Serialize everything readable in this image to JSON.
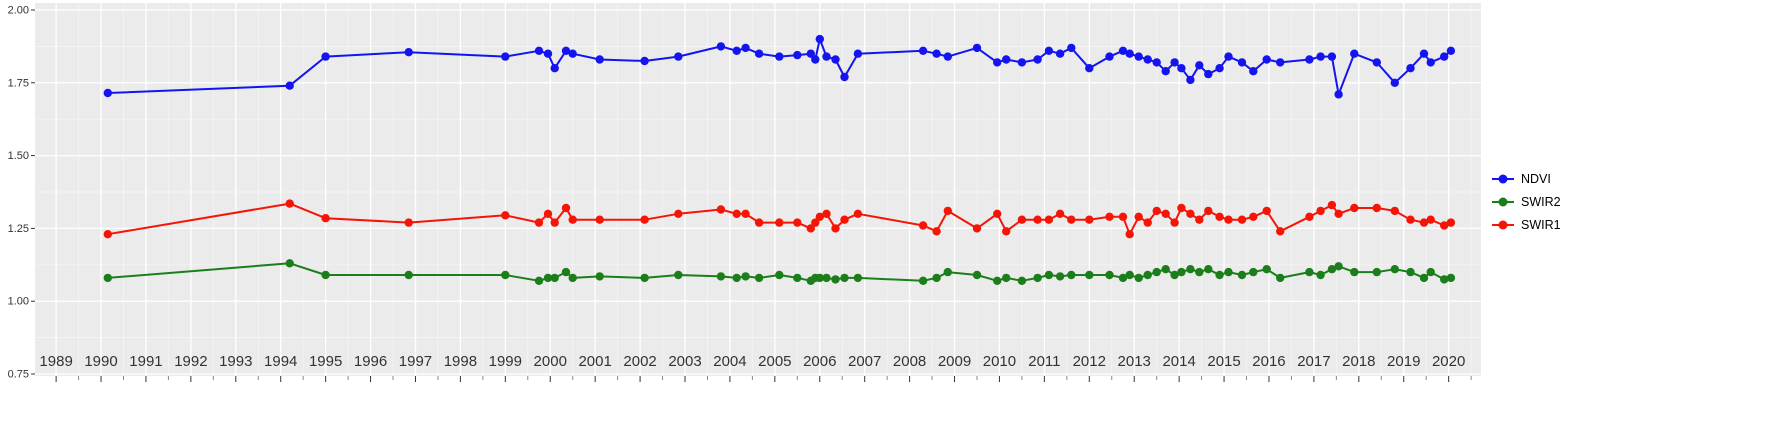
{
  "chart_data": {
    "type": "line",
    "title": "",
    "xlabel": "",
    "ylabel": "",
    "xlim": [
      1988.53,
      2020.72
    ],
    "ylim": [
      0.75,
      2.0
    ],
    "grid": true,
    "panel_bg": "#EBEBEB",
    "grid_major_color": "#FFFFFF",
    "grid_minor_color": "#FFFFFF",
    "axis_text_color": "#333333",
    "legend_position": "right",
    "x_ticks": [
      "1989",
      "1990",
      "1991",
      "1992",
      "1993",
      "1994",
      "1995",
      "1996",
      "1997",
      "1998",
      "1999",
      "2000",
      "2001",
      "2002",
      "2003",
      "2004",
      "2005",
      "2006",
      "2007",
      "2008",
      "2009",
      "2010",
      "2011",
      "2012",
      "2013",
      "2014",
      "2015",
      "2016",
      "2017",
      "2018",
      "2019",
      "2020"
    ],
    "x_tick_values": [
      1989,
      1990,
      1991,
      1992,
      1993,
      1994,
      1995,
      1996,
      1997,
      1998,
      1999,
      2000,
      2001,
      2002,
      2003,
      2004,
      2005,
      2006,
      2007,
      2008,
      2009,
      2010,
      2011,
      2012,
      2013,
      2014,
      2015,
      2016,
      2017,
      2018,
      2019,
      2020
    ],
    "y_ticks": [
      "2.00",
      "1.75",
      "1.50",
      "1.25",
      "1.00",
      "0.75"
    ],
    "y_tick_values": [
      2.0,
      1.75,
      1.5,
      1.25,
      1.0,
      0.75
    ],
    "x": [
      1990.15,
      1994.2,
      1995.0,
      1996.85,
      1999.0,
      1999.75,
      1999.95,
      2000.1,
      2000.35,
      2000.5,
      2001.1,
      2002.1,
      2002.85,
      2003.8,
      2004.15,
      2004.35,
      2004.65,
      2005.1,
      2005.5,
      2005.8,
      2005.9,
      2006.0,
      2006.15,
      2006.35,
      2006.55,
      2006.85,
      2008.3,
      2008.6,
      2008.85,
      2009.5,
      2009.95,
      2010.15,
      2010.5,
      2010.85,
      2011.1,
      2011.35,
      2011.6,
      2012.0,
      2012.45,
      2012.75,
      2012.9,
      2013.1,
      2013.3,
      2013.5,
      2013.7,
      2013.9,
      2014.05,
      2014.25,
      2014.45,
      2014.65,
      2014.9,
      2015.1,
      2015.4,
      2015.65,
      2015.95,
      2016.25,
      2016.9,
      2017.15,
      2017.4,
      2017.55,
      2017.9,
      2018.4,
      2018.8,
      2019.15,
      2019.45,
      2019.6,
      2019.9,
      2020.05
    ],
    "series": [
      {
        "name": "NDVI",
        "color": "#1414F0",
        "values": [
          1.715,
          1.74,
          1.84,
          1.855,
          1.84,
          1.86,
          1.85,
          1.8,
          1.86,
          1.85,
          1.83,
          1.825,
          1.84,
          1.875,
          1.86,
          1.87,
          1.85,
          1.84,
          1.845,
          1.85,
          1.83,
          1.9,
          1.84,
          1.83,
          1.77,
          1.85,
          1.86,
          1.85,
          1.84,
          1.87,
          1.82,
          1.83,
          1.82,
          1.83,
          1.86,
          1.85,
          1.87,
          1.8,
          1.84,
          1.86,
          1.85,
          1.84,
          1.83,
          1.82,
          1.79,
          1.82,
          1.8,
          1.76,
          1.81,
          1.78,
          1.8,
          1.84,
          1.82,
          1.79,
          1.83,
          1.82,
          1.83,
          1.84,
          1.84,
          1.71,
          1.85,
          1.82,
          1.75,
          1.8,
          1.85,
          1.82,
          1.84,
          1.86
        ]
      },
      {
        "name": "SWIR2",
        "color": "#1B7E1B",
        "values": [
          1.08,
          1.13,
          1.09,
          1.09,
          1.09,
          1.07,
          1.08,
          1.08,
          1.1,
          1.08,
          1.085,
          1.08,
          1.09,
          1.085,
          1.08,
          1.085,
          1.08,
          1.09,
          1.08,
          1.07,
          1.08,
          1.08,
          1.08,
          1.075,
          1.08,
          1.08,
          1.07,
          1.08,
          1.1,
          1.09,
          1.07,
          1.08,
          1.07,
          1.08,
          1.09,
          1.085,
          1.09,
          1.09,
          1.09,
          1.08,
          1.09,
          1.08,
          1.09,
          1.1,
          1.11,
          1.09,
          1.1,
          1.11,
          1.1,
          1.11,
          1.09,
          1.1,
          1.09,
          1.1,
          1.11,
          1.08,
          1.1,
          1.09,
          1.11,
          1.12,
          1.1,
          1.1,
          1.11,
          1.1,
          1.08,
          1.1,
          1.075,
          1.08
        ]
      },
      {
        "name": "SWIR1",
        "color": "#F51507",
        "values": [
          1.23,
          1.335,
          1.285,
          1.27,
          1.295,
          1.27,
          1.3,
          1.27,
          1.32,
          1.28,
          1.28,
          1.28,
          1.3,
          1.315,
          1.3,
          1.3,
          1.27,
          1.27,
          1.27,
          1.25,
          1.27,
          1.29,
          1.3,
          1.25,
          1.28,
          1.3,
          1.26,
          1.24,
          1.31,
          1.25,
          1.3,
          1.24,
          1.28,
          1.28,
          1.28,
          1.3,
          1.28,
          1.28,
          1.29,
          1.29,
          1.23,
          1.29,
          1.27,
          1.31,
          1.3,
          1.27,
          1.32,
          1.3,
          1.28,
          1.31,
          1.29,
          1.28,
          1.28,
          1.29,
          1.31,
          1.24,
          1.29,
          1.31,
          1.33,
          1.3,
          1.32,
          1.32,
          1.31,
          1.28,
          1.27,
          1.28,
          1.26,
          1.27
        ]
      }
    ],
    "legend": {
      "items": [
        {
          "label": "NDVI",
          "color": "#1414F0"
        },
        {
          "label": "SWIR2",
          "color": "#1B7E1B"
        },
        {
          "label": "SWIR1",
          "color": "#F51507"
        }
      ]
    }
  }
}
